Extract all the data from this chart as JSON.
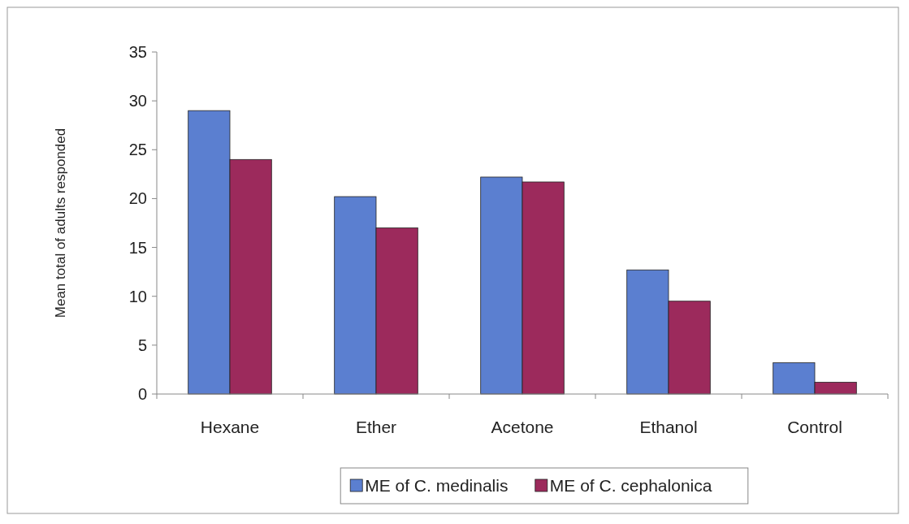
{
  "chart_data": {
    "type": "bar",
    "ylabel": "Mean total of adults responded",
    "categories": [
      "Hexane",
      "Ether",
      "Acetone",
      "Ethanol",
      "Control"
    ],
    "series": [
      {
        "name": "ME of C. medinalis",
        "color": "#5b7fd0",
        "values": [
          29,
          20.2,
          22.2,
          12.7,
          3.2
        ]
      },
      {
        "name": "ME of C. cephalonica",
        "color": "#9c2a5c",
        "values": [
          24,
          17,
          21.7,
          9.5,
          1.2
        ]
      }
    ],
    "ylim": [
      0,
      35
    ],
    "yticks": [
      0,
      5,
      10,
      15,
      20,
      25,
      30,
      35
    ],
    "grid": false,
    "legend": "bottom"
  }
}
